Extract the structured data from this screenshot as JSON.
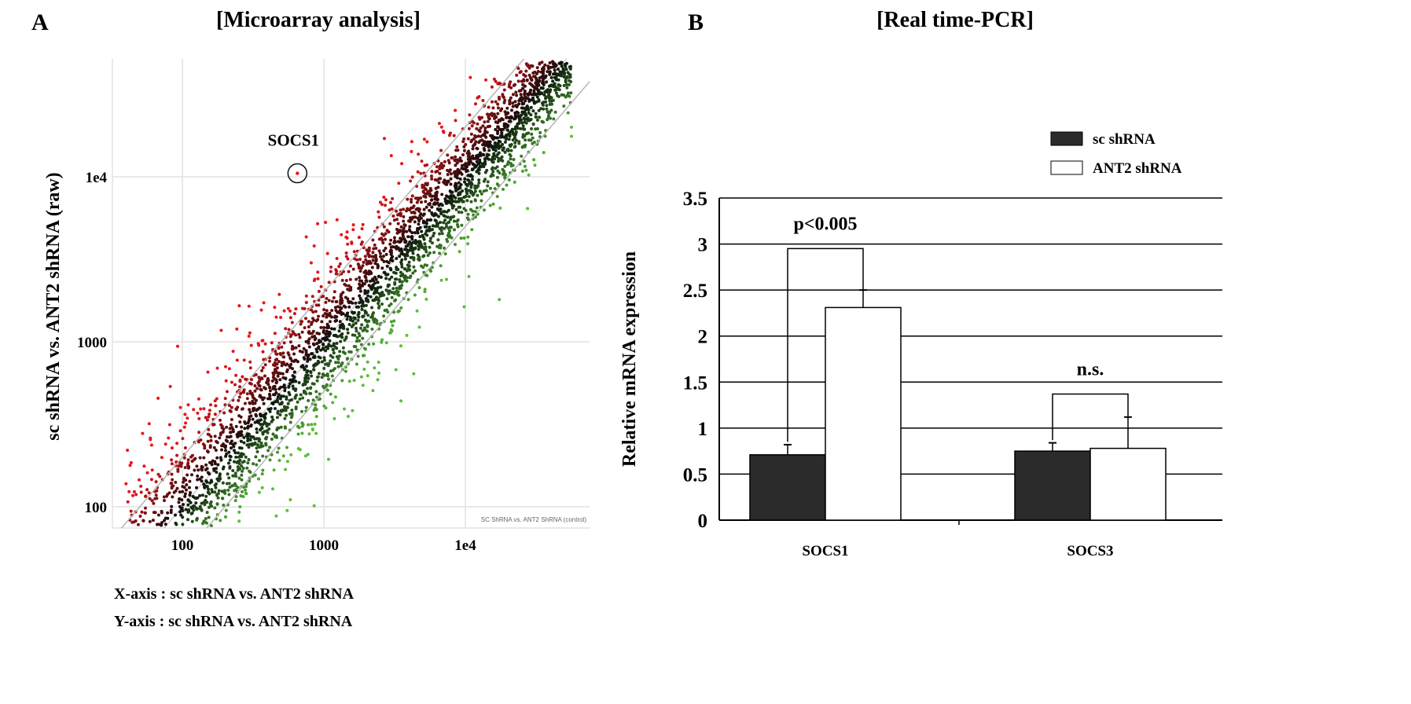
{
  "panel_a": {
    "letter": "A",
    "title": "[Microarray analysis]",
    "x_caption": "X-axis : sc shRNA vs. ANT2 shRNA",
    "y_caption": "Y-axis : sc shRNA vs. ANT2 shRNA",
    "watermark": "SC ShRNA vs. ANT2 ShRNA (control)"
  },
  "panel_b": {
    "letter": "B",
    "title": "[Real time-PCR]"
  },
  "chart_data": [
    {
      "type": "scatter",
      "title": "[Microarray analysis]",
      "xlabel": "",
      "ylabel": "sc shRNA vs. ANT2 shRNA  (raw)",
      "xscale": "log",
      "yscale": "log",
      "xlim": [
        32,
        76000
      ],
      "ylim": [
        74,
        52000
      ],
      "xticks": [
        100,
        1000,
        10000
      ],
      "xtick_labels": [
        "100",
        "1000",
        "1e4"
      ],
      "yticks": [
        100,
        1000,
        10000
      ],
      "ytick_labels": [
        "100",
        "1000",
        "1e4"
      ],
      "grid": true,
      "fold_lines": [
        2,
        1,
        0.5
      ],
      "colors": {
        "up": "#e8161b",
        "down": "#5bbf3a",
        "center": "#000000"
      },
      "distribution": {
        "n_points": 3500,
        "log_x_range": [
          1.6,
          4.75
        ],
        "log_ratio_sd": 0.17
      },
      "annotations": [
        {
          "label": "SOCS1",
          "x": 650,
          "y": 10500
        }
      ]
    },
    {
      "type": "bar",
      "title": "[Real time-PCR]",
      "xlabel": "",
      "ylabel": "Relative mRNA expression",
      "ylim": [
        0,
        3.5
      ],
      "yticks": [
        0,
        0.5,
        1,
        1.5,
        2,
        2.5,
        3,
        3.5
      ],
      "ytick_labels": [
        "0",
        "0.5",
        "1",
        "1.5",
        "2",
        "2.5",
        "3",
        "3.5"
      ],
      "grid": true,
      "categories": [
        "SOCS1",
        "SOCS3"
      ],
      "series": [
        {
          "name": "sc shRNA",
          "color": "#2b2b2b",
          "values": [
            0.71,
            0.75
          ],
          "errors": [
            0.11,
            0.09
          ]
        },
        {
          "name": "ANT2 shRNA",
          "color": "#ffffff",
          "values": [
            2.31,
            0.78
          ],
          "errors": [
            0.19,
            0.34
          ]
        }
      ],
      "legend_position": "top-right",
      "significance": [
        {
          "category": "SOCS1",
          "label": "p<0.005",
          "bracket_y": 2.95
        },
        {
          "category": "SOCS3",
          "label": "n.s.",
          "bracket_y": 1.37
        }
      ]
    }
  ]
}
